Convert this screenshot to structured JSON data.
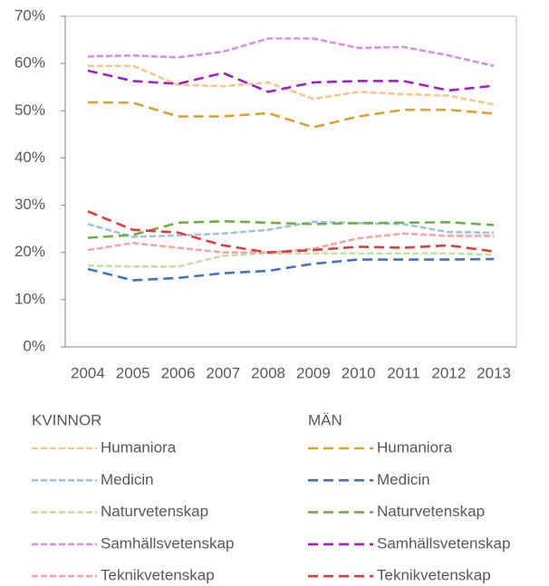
{
  "chart_data": {
    "type": "line",
    "categories": [
      "2004",
      "2005",
      "2006",
      "2007",
      "2008",
      "2009",
      "2010",
      "2011",
      "2012",
      "2013"
    ],
    "ylim": [
      0,
      70
    ],
    "yticks": [
      {
        "value": 0,
        "label": "0%"
      },
      {
        "value": 10,
        "label": "10%"
      },
      {
        "value": 20,
        "label": "20%"
      },
      {
        "value": 30,
        "label": "30%"
      },
      {
        "value": 40,
        "label": "40%"
      },
      {
        "value": 50,
        "label": "50%"
      },
      {
        "value": 60,
        "label": "60%"
      },
      {
        "value": 70,
        "label": "70%"
      }
    ],
    "grid": false,
    "legend_groups": [
      "KVINNOR",
      "MÄN"
    ],
    "series": [
      {
        "name": "Humaniora",
        "color": "#f5c78c",
        "values": [
          59.5,
          59.5,
          55.5,
          55.2,
          56,
          52.5,
          54,
          53.5,
          53.2,
          51.3
        ]
      },
      {
        "name": "Medicin",
        "color": "#9dc3e6",
        "values": [
          26,
          23.3,
          23.6,
          24,
          24.8,
          26.5,
          26.2,
          26,
          24.3,
          24.2
        ]
      },
      {
        "name": "Naturvetenskap",
        "color": "#c5e0a5",
        "values": [
          17.2,
          17,
          17,
          19.3,
          19.8,
          19.8,
          19.8,
          19.8,
          19.8,
          19.5
        ]
      },
      {
        "name": "Samhällsvetenskap",
        "color": "#d88fe3",
        "values": [
          61.5,
          61.7,
          61.3,
          62.5,
          65.3,
          65.3,
          63.3,
          63.5,
          61.7,
          59.5
        ]
      },
      {
        "name": "Teknikvetenskap",
        "color": "#f4a6a6",
        "values": [
          20.5,
          22,
          21,
          20,
          20,
          20.8,
          23,
          24,
          23.5,
          23.5
        ]
      },
      {
        "name": "Humaniora",
        "color": "#e0a030",
        "values": [
          51.8,
          51.7,
          48.8,
          48.8,
          49.5,
          46.5,
          48.8,
          50.2,
          50.2,
          49.4
        ]
      },
      {
        "name": "Medicin",
        "color": "#4472c4",
        "values": [
          16.5,
          14.1,
          14.6,
          15.6,
          16.1,
          17.6,
          18.5,
          18.5,
          18.5,
          18.6
        ]
      },
      {
        "name": "Naturvetenskap",
        "color": "#70ad47",
        "values": [
          23.1,
          23.7,
          26.3,
          26.6,
          26.3,
          26,
          26.2,
          26.3,
          26.4,
          25.8
        ]
      },
      {
        "name": "Samhällsvetenskap",
        "color": "#a020c0",
        "values": [
          58.5,
          56.3,
          55.7,
          58,
          54,
          56,
          56.3,
          56.3,
          54.3,
          55.3
        ]
      },
      {
        "name": "Teknikvetenskap",
        "color": "#e03c3c",
        "values": [
          28.7,
          24.8,
          24.2,
          21.5,
          20,
          20.5,
          21.2,
          21,
          21.5,
          20.2
        ]
      }
    ]
  }
}
